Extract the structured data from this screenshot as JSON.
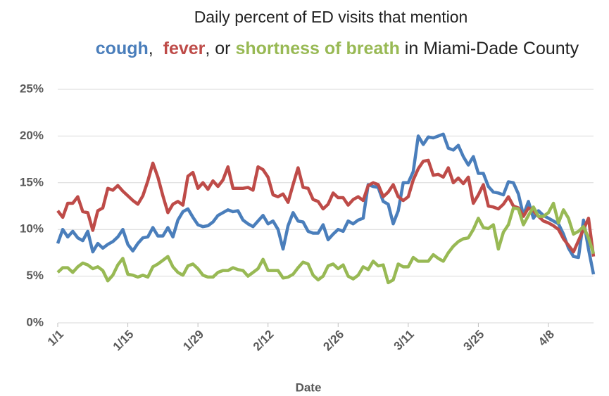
{
  "chart_data": {
    "type": "line",
    "title": "Daily percent of ED visits that mention",
    "title_connectors": [
      ",  ",
      ", or ",
      " in Miami-Dade County"
    ],
    "x_label": "Date",
    "categories": [
      "1/1",
      null,
      null,
      null,
      null,
      null,
      null,
      null,
      null,
      null,
      null,
      null,
      null,
      null,
      "1/15",
      null,
      null,
      null,
      null,
      null,
      null,
      null,
      null,
      null,
      null,
      null,
      null,
      null,
      "1/29",
      null,
      null,
      null,
      null,
      null,
      null,
      null,
      null,
      null,
      null,
      null,
      null,
      null,
      "2/12",
      null,
      null,
      null,
      null,
      null,
      null,
      null,
      null,
      null,
      null,
      null,
      null,
      null,
      "2/26",
      null,
      null,
      null,
      null,
      null,
      null,
      null,
      null,
      null,
      null,
      null,
      null,
      null,
      "3/11",
      null,
      null,
      null,
      null,
      null,
      null,
      null,
      null,
      null,
      null,
      null,
      null,
      null,
      "3/25",
      null,
      null,
      null,
      null,
      null,
      null,
      null,
      null,
      null,
      null,
      null,
      null,
      null,
      "4/8",
      null,
      null,
      null,
      null,
      null,
      null,
      null,
      null,
      null
    ],
    "series": [
      {
        "name": "cough",
        "color": "#4a7ebb",
        "values": [
          8.5,
          10.0,
          9.2,
          9.8,
          9.1,
          8.8,
          9.8,
          7.6,
          8.5,
          8.0,
          8.4,
          8.7,
          9.2,
          10.0,
          8.4,
          7.7,
          8.5,
          9.1,
          9.2,
          10.2,
          9.3,
          9.3,
          10.2,
          9.2,
          11.0,
          11.9,
          12.2,
          11.3,
          10.5,
          10.3,
          10.4,
          10.8,
          11.5,
          11.8,
          12.1,
          11.9,
          12.0,
          11.0,
          10.6,
          10.3,
          10.9,
          11.5,
          10.6,
          10.9,
          10.0,
          7.9,
          10.4,
          11.8,
          10.9,
          10.8,
          9.8,
          9.6,
          9.6,
          10.5,
          8.9,
          9.5,
          10.0,
          9.8,
          10.9,
          10.6,
          11.0,
          11.2,
          14.8,
          14.6,
          14.5,
          13.0,
          12.7,
          10.6,
          12.0,
          15.0,
          15.0,
          16.2,
          20.0,
          19.1,
          19.9,
          19.8,
          20.0,
          20.2,
          18.7,
          18.5,
          19.0,
          17.8,
          16.9,
          17.8,
          16.0,
          16.0,
          14.6,
          14.0,
          13.9,
          13.7,
          15.1,
          15.0,
          13.8,
          11.5,
          13.0,
          11.2,
          12.0,
          11.5,
          11.2,
          10.9,
          10.6,
          9.5,
          8.0,
          7.1,
          7.0,
          11.0,
          7.9,
          5.2
        ]
      },
      {
        "name": "fever",
        "color": "#be4b48",
        "values": [
          12.0,
          11.3,
          12.8,
          12.8,
          13.5,
          11.9,
          11.8,
          9.9,
          12.0,
          12.3,
          14.4,
          14.2,
          14.7,
          14.1,
          13.6,
          13.1,
          12.7,
          13.6,
          15.2,
          17.1,
          15.6,
          13.6,
          11.8,
          12.7,
          13.0,
          12.6,
          15.7,
          16.1,
          14.4,
          15.0,
          14.3,
          15.2,
          14.6,
          15.3,
          16.7,
          14.4,
          14.4,
          14.4,
          14.5,
          14.2,
          16.7,
          16.4,
          15.6,
          13.7,
          13.5,
          13.8,
          12.9,
          14.8,
          16.6,
          14.5,
          14.4,
          13.2,
          13.0,
          12.2,
          12.7,
          13.9,
          13.4,
          13.4,
          12.6,
          13.2,
          13.5,
          13.1,
          14.7,
          15.0,
          14.8,
          13.5,
          14.0,
          14.8,
          13.5,
          13.1,
          13.5,
          15.3,
          16.5,
          17.3,
          17.4,
          15.8,
          15.9,
          15.6,
          16.6,
          15.0,
          15.5,
          14.9,
          15.6,
          12.8,
          13.7,
          14.8,
          12.5,
          12.4,
          12.2,
          12.7,
          13.5,
          12.5,
          12.3,
          11.4,
          12.3,
          12.0,
          11.4,
          10.9,
          10.7,
          10.4,
          10.0,
          9.0,
          8.3,
          7.6,
          8.8,
          10.0,
          11.2,
          7.1
        ]
      },
      {
        "name": "shortness of breath",
        "color": "#98b954",
        "values": [
          5.4,
          5.9,
          5.9,
          5.4,
          6.0,
          6.4,
          6.2,
          5.8,
          6.0,
          5.6,
          4.5,
          5.1,
          6.2,
          6.9,
          5.2,
          5.1,
          4.9,
          5.1,
          4.9,
          6.0,
          6.3,
          6.7,
          7.1,
          6.0,
          5.4,
          5.1,
          6.1,
          6.3,
          5.8,
          5.1,
          4.9,
          4.9,
          5.4,
          5.6,
          5.6,
          5.9,
          5.7,
          5.6,
          5.0,
          5.4,
          5.8,
          6.8,
          5.6,
          5.6,
          5.6,
          4.8,
          4.9,
          5.2,
          5.9,
          6.5,
          6.3,
          5.1,
          4.6,
          5.0,
          6.1,
          6.3,
          5.8,
          6.2,
          5.0,
          4.7,
          5.1,
          6.0,
          5.7,
          6.6,
          6.1,
          6.2,
          4.3,
          4.6,
          6.3,
          6.0,
          6.0,
          7.0,
          6.6,
          6.6,
          6.6,
          7.3,
          6.9,
          6.6,
          7.5,
          8.2,
          8.7,
          9.0,
          9.1,
          10.0,
          11.2,
          10.2,
          10.1,
          10.5,
          7.9,
          9.7,
          10.5,
          12.3,
          12.2,
          10.5,
          11.5,
          12.4,
          11.4,
          11.4,
          11.8,
          12.8,
          10.7,
          12.1,
          11.2,
          9.5,
          9.8,
          10.3,
          9.1,
          7.4
        ]
      }
    ],
    "ylim": [
      0,
      25
    ],
    "yticks": [
      {
        "value": 0,
        "label": "0%"
      },
      {
        "value": 5,
        "label": "5%"
      },
      {
        "value": 10,
        "label": "10%"
      },
      {
        "value": 15,
        "label": "15%"
      },
      {
        "value": 20,
        "label": "20%"
      },
      {
        "value": 25,
        "label": "25%"
      }
    ],
    "grid": true
  }
}
